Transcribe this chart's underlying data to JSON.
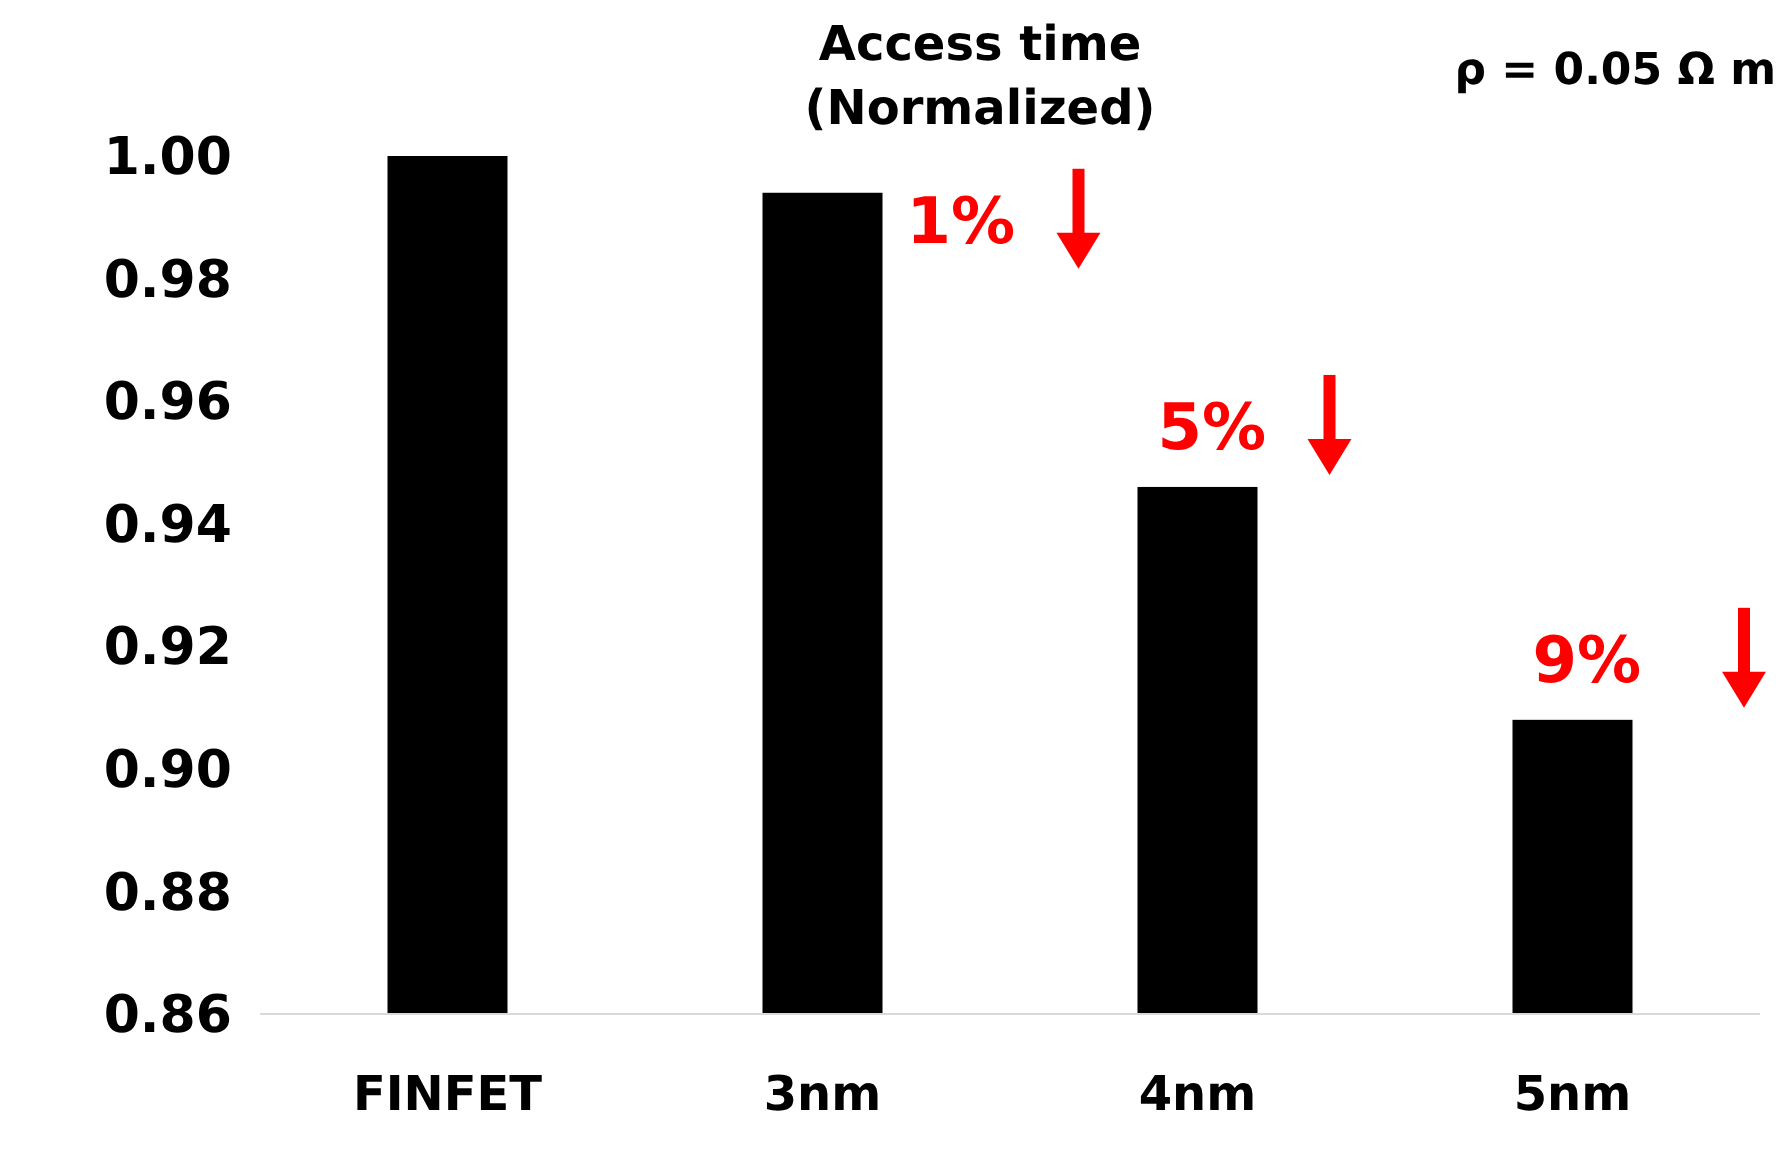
{
  "chart_data": {
    "type": "bar",
    "title": "Access time\n(Normalized)",
    "categories": [
      "FINFET",
      "3nm",
      "4nm",
      "5nm"
    ],
    "values": [
      1.0,
      0.994,
      0.946,
      0.908
    ],
    "color": "#000000",
    "ylim": [
      0.86,
      1.0
    ],
    "yticks": [
      {
        "value": 0.86,
        "label": "0.86"
      },
      {
        "value": 0.88,
        "label": "0.88"
      },
      {
        "value": 0.9,
        "label": "0.90"
      },
      {
        "value": 0.92,
        "label": "0.92"
      },
      {
        "value": 0.94,
        "label": "0.94"
      },
      {
        "value": 0.96,
        "label": "0.96"
      },
      {
        "value": 0.98,
        "label": "0.98"
      },
      {
        "value": 1.0,
        "label": "1.00"
      }
    ],
    "annotations": [
      "1%",
      "5%",
      "9%",
      "ρ = 0.05 Ω m"
    ]
  }
}
